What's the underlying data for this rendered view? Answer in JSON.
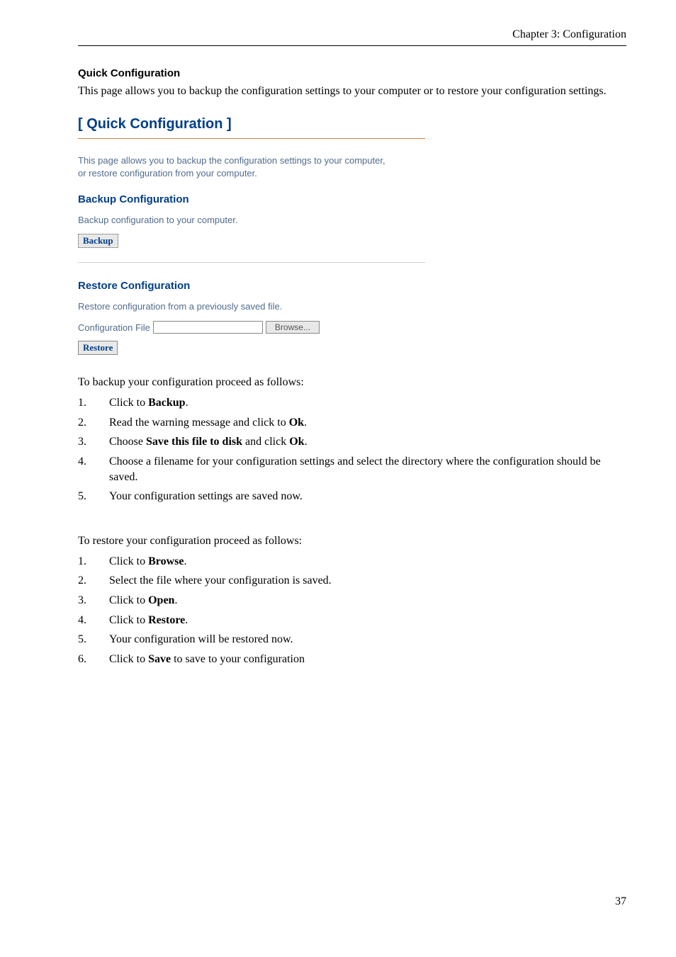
{
  "header": {
    "chapter": "Chapter 3: Configuration"
  },
  "section": {
    "title": "Quick Configuration",
    "intro": "This page allows you to backup the configuration settings to your computer or to restore your configuration settings."
  },
  "ui": {
    "title": "[ Quick Configuration ]",
    "desc_line1": "This page allows you to backup the configuration settings to your computer,",
    "desc_line2": "or restore configuration from your computer.",
    "backup": {
      "heading": "Backup Configuration",
      "desc": "Backup configuration to your computer.",
      "button": "Backup"
    },
    "restore": {
      "heading": "Restore Configuration",
      "desc": "Restore configuration from a previously saved file.",
      "file_label": "Configuration File",
      "file_value": "",
      "browse_button": "Browse...",
      "button": "Restore"
    },
    "colors": {
      "heading_blue": "#003e8a",
      "body_blue": "#516c8f",
      "rule_orange": "#e07b3a",
      "button_bg": "#e8e8e8"
    }
  },
  "backup_instr_lead": "To backup your configuration proceed as follows:",
  "backup_steps": [
    {
      "n": "1.",
      "pre": "Click to ",
      "b": "Backup",
      "post": "."
    },
    {
      "n": "2.",
      "pre": "Read the warning message and click to ",
      "b": "Ok",
      "post": "."
    },
    {
      "n": "3.",
      "pre": "Choose ",
      "b": "Save this file to disk",
      "post": " and click ",
      "b2": "Ok",
      "post2": "."
    },
    {
      "n": "4.",
      "pre": "Choose a filename for your configuration settings and select the directory where the configuration should be saved."
    },
    {
      "n": "5.",
      "pre": "Your configuration settings are saved now."
    }
  ],
  "restore_instr_lead": "To restore your configuration proceed as follows:",
  "restore_steps": [
    {
      "n": "1.",
      "pre": "Click to ",
      "b": "Browse",
      "post": "."
    },
    {
      "n": "2.",
      "pre": "Select the file where your configuration is saved."
    },
    {
      "n": "3.",
      "pre": "Click to ",
      "b": "Open",
      "post": "."
    },
    {
      "n": "4.",
      "pre": "Click to ",
      "b": "Restore",
      "post": "."
    },
    {
      "n": "5.",
      "pre": "Your configuration will be restored now."
    },
    {
      "n": "6.",
      "pre": "Click to ",
      "b": "Save",
      "post": " to save to your configuration"
    }
  ],
  "footer": {
    "page": "37"
  }
}
